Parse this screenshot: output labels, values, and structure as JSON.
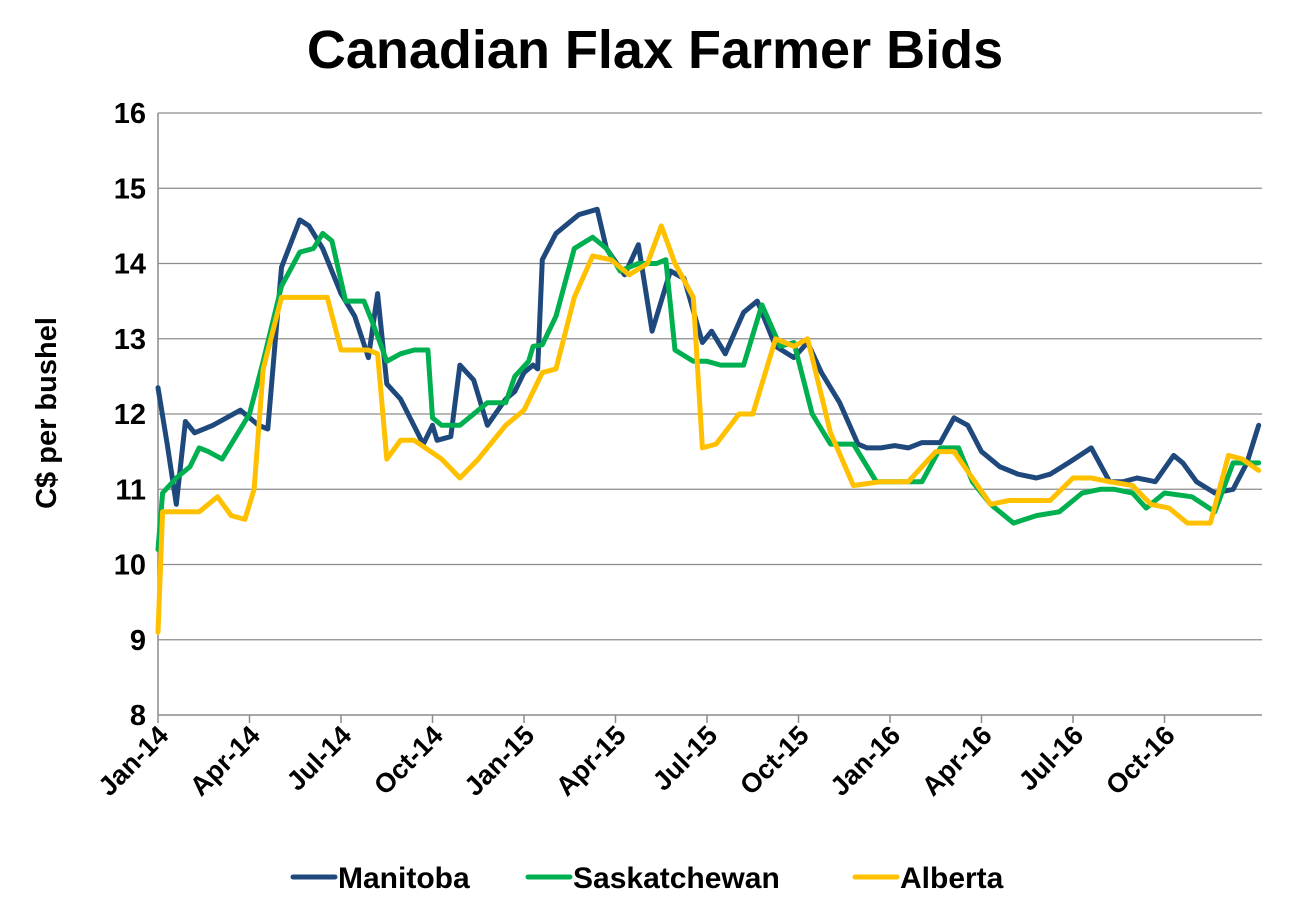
{
  "chart_data": {
    "type": "line",
    "title": "Canadian Flax Farmer Bids",
    "ylabel": "C$ per bushel",
    "xlabel": "",
    "ylim": [
      8,
      16
    ],
    "yticks": [
      8,
      9,
      10,
      11,
      12,
      13,
      14,
      15,
      16
    ],
    "xlim": [
      0,
      12.3
    ],
    "x_tick_labels": [
      "Jan-14",
      "Apr-14",
      "Jul-14",
      "Oct-14",
      "Jan-15",
      "Apr-15",
      "Jul-15",
      "Oct-15",
      "Jan-16",
      "Apr-16",
      "Jul-16",
      "Oct-16"
    ],
    "grid": true,
    "legend_position": "bottom",
    "series": [
      {
        "name": "Manitoba",
        "color": "#1f497d",
        "x": [
          0,
          0.1,
          0.2,
          0.3,
          0.4,
          0.6,
          0.9,
          1.1,
          1.2,
          1.35,
          1.55,
          1.65,
          1.8,
          2.0,
          2.15,
          2.3,
          2.4,
          2.5,
          2.65,
          2.9,
          3.0,
          3.05,
          3.2,
          3.3,
          3.45,
          3.6,
          3.8,
          3.9,
          4.0,
          4.1,
          4.15,
          4.2,
          4.35,
          4.6,
          4.8,
          4.9,
          5.1,
          5.25,
          5.4,
          5.6,
          5.75,
          5.95,
          6.05,
          6.2,
          6.4,
          6.55,
          6.75,
          6.95,
          7.1,
          7.25,
          7.45,
          7.65,
          7.75,
          7.9,
          8.05,
          8.2,
          8.35,
          8.55,
          8.7,
          8.85,
          9.0,
          9.2,
          9.4,
          9.6,
          9.75,
          9.95,
          10.2,
          10.4,
          10.55,
          10.7,
          10.9,
          11.1,
          11.2,
          11.35,
          11.55,
          11.75,
          11.9,
          12.03
        ],
        "y": [
          12.35,
          11.6,
          10.8,
          11.9,
          11.75,
          11.85,
          12.05,
          11.85,
          11.8,
          13.95,
          14.58,
          14.5,
          14.2,
          13.6,
          13.3,
          12.75,
          13.6,
          12.4,
          12.2,
          11.6,
          11.85,
          11.65,
          11.7,
          12.65,
          12.45,
          11.85,
          12.2,
          12.3,
          12.55,
          12.65,
          12.6,
          14.05,
          14.4,
          14.65,
          14.72,
          14.2,
          13.85,
          14.25,
          13.1,
          13.9,
          13.8,
          12.95,
          13.1,
          12.8,
          13.35,
          13.5,
          12.9,
          12.75,
          12.95,
          12.55,
          12.15,
          11.6,
          11.55,
          11.55,
          11.58,
          11.55,
          11.62,
          11.62,
          11.95,
          11.85,
          11.5,
          11.3,
          11.2,
          11.15,
          11.2,
          11.35,
          11.55,
          11.1,
          11.1,
          11.15,
          11.1,
          11.45,
          11.35,
          11.1,
          10.95,
          11.0,
          11.35,
          11.85
        ]
      },
      {
        "name": "Saskatchewan",
        "color": "#00b050",
        "x": [
          0,
          0.05,
          0.2,
          0.35,
          0.45,
          0.55,
          0.7,
          0.85,
          1.0,
          1.15,
          1.35,
          1.55,
          1.7,
          1.8,
          1.9,
          2.05,
          2.25,
          2.35,
          2.5,
          2.65,
          2.8,
          2.95,
          3.0,
          3.1,
          3.3,
          3.6,
          3.8,
          3.9,
          4.05,
          4.1,
          4.2,
          4.35,
          4.55,
          4.75,
          4.9,
          5.05,
          5.25,
          5.45,
          5.55,
          5.65,
          5.85,
          6.0,
          6.15,
          6.4,
          6.6,
          6.8,
          6.95,
          7.15,
          7.35,
          7.6,
          7.85,
          8.2,
          8.35,
          8.55,
          8.75,
          8.9,
          9.1,
          9.35,
          9.6,
          9.85,
          10.1,
          10.3,
          10.45,
          10.65,
          10.8,
          11.0,
          11.3,
          11.55,
          11.75,
          11.95,
          12.03
        ],
        "y": [
          10.2,
          10.95,
          11.15,
          11.3,
          11.55,
          11.5,
          11.4,
          11.7,
          12.0,
          12.7,
          13.7,
          14.15,
          14.2,
          14.4,
          14.3,
          13.5,
          13.5,
          13.2,
          12.7,
          12.8,
          12.85,
          12.85,
          11.95,
          11.85,
          11.85,
          12.15,
          12.15,
          12.5,
          12.7,
          12.9,
          12.92,
          13.3,
          14.2,
          14.35,
          14.2,
          13.9,
          14.0,
          14.0,
          14.05,
          12.85,
          12.7,
          12.7,
          12.65,
          12.65,
          13.45,
          12.9,
          12.95,
          12.0,
          11.6,
          11.6,
          11.1,
          11.1,
          11.1,
          11.55,
          11.55,
          11.1,
          10.8,
          10.55,
          10.65,
          10.7,
          10.95,
          11.0,
          11.0,
          10.95,
          10.75,
          10.95,
          10.9,
          10.7,
          11.35,
          11.35,
          11.35
        ]
      },
      {
        "name": "Alberta",
        "color": "#ffc000",
        "x": [
          0,
          0.05,
          0.2,
          0.45,
          0.65,
          0.8,
          0.95,
          1.05,
          1.15,
          1.35,
          1.6,
          1.85,
          2.0,
          2.3,
          2.4,
          2.5,
          2.65,
          2.8,
          3.1,
          3.3,
          3.5,
          3.8,
          4.0,
          4.2,
          4.35,
          4.55,
          4.75,
          4.95,
          5.15,
          5.35,
          5.5,
          5.65,
          5.85,
          5.95,
          6.1,
          6.35,
          6.5,
          6.75,
          6.95,
          7.1,
          7.35,
          7.6,
          7.9,
          8.2,
          8.5,
          8.7,
          8.9,
          9.1,
          9.3,
          9.5,
          9.75,
          10.0,
          10.2,
          10.4,
          10.65,
          10.85,
          11.05,
          11.25,
          11.5,
          11.7,
          11.85,
          12.03
        ],
        "y": [
          9.1,
          10.7,
          10.7,
          10.7,
          10.9,
          10.65,
          10.6,
          11.0,
          12.6,
          13.55,
          13.55,
          13.55,
          12.85,
          12.85,
          12.8,
          11.4,
          11.65,
          11.65,
          11.4,
          11.15,
          11.4,
          11.85,
          12.05,
          12.55,
          12.6,
          13.55,
          14.1,
          14.05,
          13.85,
          14.0,
          14.5,
          14.0,
          13.55,
          11.55,
          11.6,
          12.0,
          12.0,
          13.0,
          12.9,
          13.0,
          11.75,
          11.05,
          11.1,
          11.1,
          11.5,
          11.5,
          11.15,
          10.8,
          10.85,
          10.85,
          10.85,
          11.15,
          11.15,
          11.1,
          11.05,
          10.8,
          10.75,
          10.55,
          10.55,
          11.45,
          11.4,
          11.25
        ]
      }
    ]
  }
}
